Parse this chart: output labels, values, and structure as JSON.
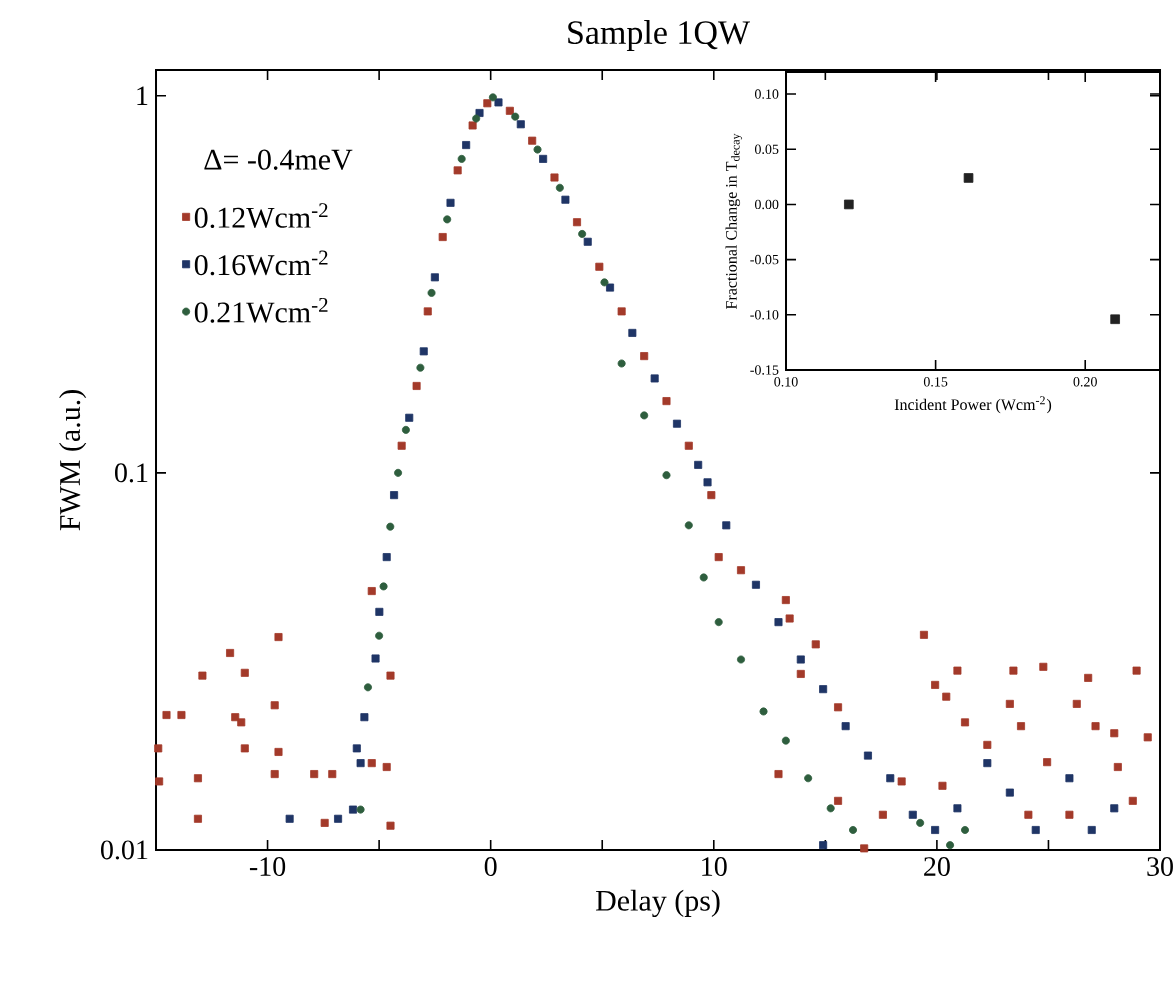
{
  "chart_data": [
    {
      "type": "scatter",
      "title": "Sample 1QW",
      "xlabel": "Delay (ps)",
      "ylabel": "FWM (a.u.)",
      "annotations": [
        "Δ= -0.4meV"
      ],
      "log": "y",
      "legend": "top left",
      "xlim": [
        -15,
        30
      ],
      "ylim": [
        0.01,
        1.17
      ],
      "xticks": [
        {
          "value": -15,
          "label": null
        },
        -10,
        {
          "value": -5,
          "label": null
        },
        0,
        {
          "value": 5,
          "label": null
        },
        10,
        {
          "value": 15,
          "label": null
        },
        20,
        {
          "value": 25,
          "label": null
        },
        30
      ],
      "yticks": [
        0.01,
        0.1,
        1
      ],
      "series": [
        {
          "name": "0.12Wcm$^{-2}$",
          "color": "#a33a2a",
          "marker": "square",
          "x": [
            -14.9,
            -14.53,
            -13.86,
            -14.86,
            -13.12,
            -13.12,
            -12.92,
            -11.68,
            -11.45,
            -11.18,
            -11.02,
            -11.02,
            -9.68,
            -9.51,
            -9.68,
            -9.51,
            -7.91,
            -7.44,
            -7.1,
            -5.33,
            -5.33,
            -4.66,
            -4.49,
            -4.49,
            -3.99,
            -3.32,
            -2.82,
            -2.15,
            -1.48,
            -0.81,
            -0.15,
            0.86,
            1.86,
            2.86,
            3.87,
            4.87,
            5.87,
            6.88,
            7.88,
            8.88,
            9.89,
            10.22,
            11.22,
            13.23,
            13.4,
            14.57,
            13.9,
            15.57,
            12.9,
            15.57,
            16.74,
            17.58,
            18.42,
            19.42,
            19.92,
            20.25,
            20.42,
            20.92,
            21.26,
            22.26,
            23.43,
            23.27,
            23.77,
            24.1,
            24.77,
            24.94,
            25.94,
            26.27,
            26.78,
            27.11,
            27.95,
            28.11,
            28.78,
            28.95,
            29.45
          ],
          "values": [
            0.0186,
            0.0228,
            0.0228,
            0.0152,
            0.0155,
            0.0121,
            0.029,
            0.0333,
            0.0225,
            0.0218,
            0.0295,
            0.0186,
            0.0242,
            0.0367,
            0.0159,
            0.0182,
            0.0159,
            0.0118,
            0.0159,
            0.0486,
            0.017,
            0.0166,
            0.029,
            0.0116,
            0.118,
            0.17,
            0.268,
            0.422,
            0.634,
            0.834,
            0.955,
            0.912,
            0.76,
            0.607,
            0.462,
            0.352,
            0.268,
            0.204,
            0.155,
            0.118,
            0.0873,
            0.0598,
            0.0552,
            0.046,
            0.0411,
            0.0351,
            0.0293,
            0.0239,
            0.0159,
            0.0135,
            0.0101,
            0.0124,
            0.0152,
            0.0372,
            0.0274,
            0.0148,
            0.0255,
            0.0299,
            0.0218,
            0.019,
            0.0299,
            0.0244,
            0.0213,
            0.0124,
            0.0306,
            0.0171,
            0.0124,
            0.0244,
            0.0286,
            0.0213,
            0.0204,
            0.0166,
            0.0135,
            0.0299,
            0.0199
          ]
        },
        {
          "name": "0.16Wcm$^{-2}$",
          "color": "#1f3566",
          "marker": "square",
          "x": [
            -9.01,
            -6.84,
            -6.17,
            -6.0,
            -5.83,
            -5.66,
            -5.16,
            -4.99,
            -4.66,
            -4.33,
            -3.65,
            -3.0,
            -2.5,
            -1.8,
            -1.1,
            -0.5,
            0.35,
            1.35,
            2.35,
            3.35,
            4.35,
            5.35,
            6.35,
            7.35,
            8.35,
            9.3,
            9.72,
            10.56,
            11.89,
            12.9,
            13.9,
            14.9,
            14.9,
            15.91,
            16.91,
            17.91,
            18.92,
            19.92,
            20.92,
            22.26,
            23.27,
            24.43,
            25.94,
            26.94,
            27.95
          ],
          "values": [
            0.0121,
            0.0121,
            0.0128,
            0.0186,
            0.017,
            0.0225,
            0.0322,
            0.0428,
            0.0598,
            0.0873,
            0.14,
            0.21,
            0.33,
            0.52,
            0.74,
            0.9,
            0.96,
            0.84,
            0.68,
            0.53,
            0.41,
            0.31,
            0.235,
            0.178,
            0.135,
            0.105,
            0.0944,
            0.0726,
            0.0505,
            0.0402,
            0.032,
            0.0267,
            0.0103,
            0.0213,
            0.0178,
            0.0155,
            0.0124,
            0.0113,
            0.0129,
            0.017,
            0.0142,
            0.0113,
            0.0155,
            0.0113,
            0.0129
          ]
        },
        {
          "name": "0.21Wcm$^{-2}$",
          "color": "#2e5e3e",
          "marker": "circle",
          "x": [
            -5.83,
            -5.5,
            -5.0,
            -4.8,
            -4.5,
            -4.15,
            -3.8,
            -3.15,
            -2.65,
            -1.95,
            -1.3,
            -0.65,
            0.1,
            1.1,
            2.1,
            3.1,
            4.1,
            5.1,
            5.87,
            6.88,
            7.88,
            8.88,
            9.55,
            10.22,
            11.22,
            12.23,
            13.23,
            14.23,
            15.24,
            16.24,
            19.25,
            20.59,
            21.26
          ],
          "values": [
            0.0128,
            0.027,
            0.037,
            0.05,
            0.072,
            0.1,
            0.13,
            0.19,
            0.3,
            0.47,
            0.68,
            0.87,
            0.99,
            0.88,
            0.72,
            0.57,
            0.43,
            0.32,
            0.195,
            0.142,
            0.0986,
            0.0726,
            0.0528,
            0.0402,
            0.032,
            0.0233,
            0.0195,
            0.0155,
            0.0129,
            0.0113,
            0.0118,
            0.0103,
            0.0113
          ]
        }
      ]
    },
    {
      "type": "scatter",
      "xlabel": "Incident Power (Wcm$^{-2}$)",
      "ylabel": "Fractional Change in T$_{decay}$",
      "xlim": [
        0.1,
        0.225
      ],
      "ylim": [
        -0.15,
        0.12
      ],
      "xticks": [
        {
          "value": 0.1,
          "label": "0.10"
        },
        {
          "value": 0.15,
          "label": "0.15"
        },
        {
          "value": 0.2,
          "label": "0.20"
        }
      ],
      "yticks": [
        {
          "value": -0.15,
          "label": "-0.15"
        },
        {
          "value": -0.1,
          "label": "-0.10"
        },
        {
          "value": -0.05,
          "label": "-0.05"
        },
        {
          "value": 0.0,
          "label": "0.00"
        },
        {
          "value": 0.05,
          "label": "0.05"
        },
        {
          "value": 0.1,
          "label": "0.10"
        }
      ],
      "series": [
        {
          "color": "#222222",
          "marker": "square",
          "x": [
            0.121,
            0.161,
            0.21
          ],
          "values": [
            0.0,
            0.024,
            -0.104
          ]
        }
      ]
    }
  ]
}
